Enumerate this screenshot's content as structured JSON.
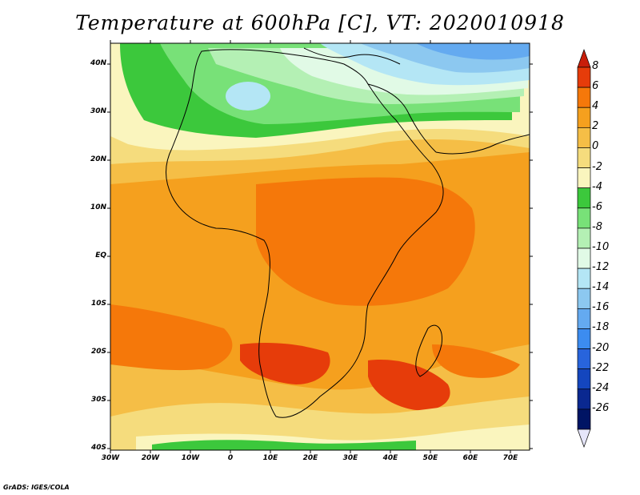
{
  "title": "Temperature at 600hPa [C], VT: 2020010918",
  "credit": "GrADS: IGES/COLA",
  "axes": {
    "lat_labels": [
      "40N",
      "30N",
      "20N",
      "10N",
      "EQ",
      "10S",
      "20S",
      "30S",
      "40S"
    ],
    "lon_labels": [
      "30W",
      "20W",
      "10W",
      "0",
      "10E",
      "20E",
      "30E",
      "40E",
      "50E",
      "60E",
      "70E"
    ]
  },
  "colorbar": {
    "labels": [
      "8",
      "6",
      "4",
      "2",
      "0",
      "-2",
      "-4",
      "-6",
      "-8",
      "-10",
      "-12",
      "-14",
      "-16",
      "-18",
      "-20",
      "-22",
      "-24",
      "-26"
    ],
    "colors": [
      "#c81e0a",
      "#e63c0a",
      "#f5780a",
      "#f5a01e",
      "#f5be46",
      "#f5dc7d",
      "#faf5be",
      "#3cc83c",
      "#78e178",
      "#b4f0b4",
      "#e1fae6",
      "#b4e6f5",
      "#8cc8f0",
      "#64aaf0",
      "#3c8cf0",
      "#2864dc",
      "#1446be",
      "#0a2890",
      "#001464",
      "#e6e6fa"
    ]
  },
  "map": {
    "domain": "Africa and surrounding oceans, 30W-75E, 40S-45N",
    "field": "600hPa temperature (shaded)",
    "colors": {
      "ocean_default": "#f5be46",
      "warm": "#f5a01e",
      "hot": "#f5780a",
      "hottest": "#e63c0a",
      "pale": "#faf5be",
      "cool": "#f5dc7d",
      "green": "#3cc83c",
      "light_green": "#78e178",
      "pale_green": "#b4f0b4",
      "cyan": "#e1fae6",
      "light_blue": "#b4e6f5",
      "blue": "#8cc8f0",
      "deep_blue": "#64aaf0",
      "coast": "#000000"
    }
  }
}
